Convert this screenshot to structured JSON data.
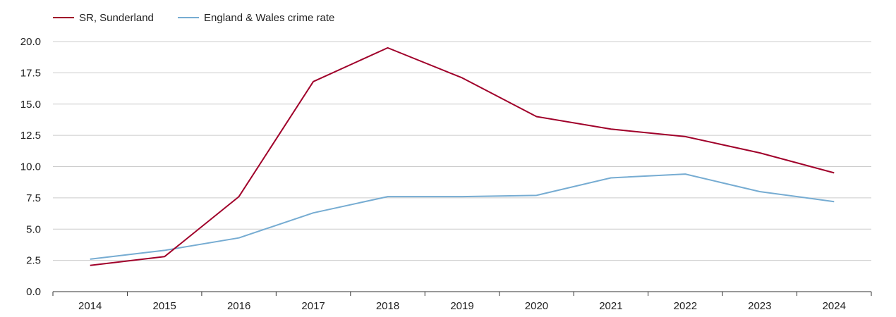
{
  "chart_data": {
    "type": "line",
    "x": [
      "2014",
      "2015",
      "2016",
      "2017",
      "2018",
      "2019",
      "2020",
      "2021",
      "2022",
      "2023",
      "2024"
    ],
    "series": [
      {
        "name": "SR, Sunderland",
        "color": "#a0002a",
        "values": [
          2.1,
          2.8,
          7.6,
          16.8,
          19.5,
          17.1,
          14.0,
          13.0,
          12.4,
          11.1,
          9.5
        ]
      },
      {
        "name": "England & Wales crime rate",
        "color": "#76acd2",
        "values": [
          2.6,
          3.3,
          4.3,
          6.3,
          7.6,
          7.6,
          7.7,
          9.1,
          9.4,
          8.0,
          7.2
        ]
      }
    ],
    "yticks": [
      "0.0",
      "2.5",
      "5.0",
      "7.5",
      "10.0",
      "12.5",
      "15.0",
      "17.5",
      "20.0"
    ],
    "ylim": [
      0,
      20
    ],
    "grid": true,
    "legend_position": "top-left",
    "title": "",
    "xlabel": "",
    "ylabel": ""
  }
}
